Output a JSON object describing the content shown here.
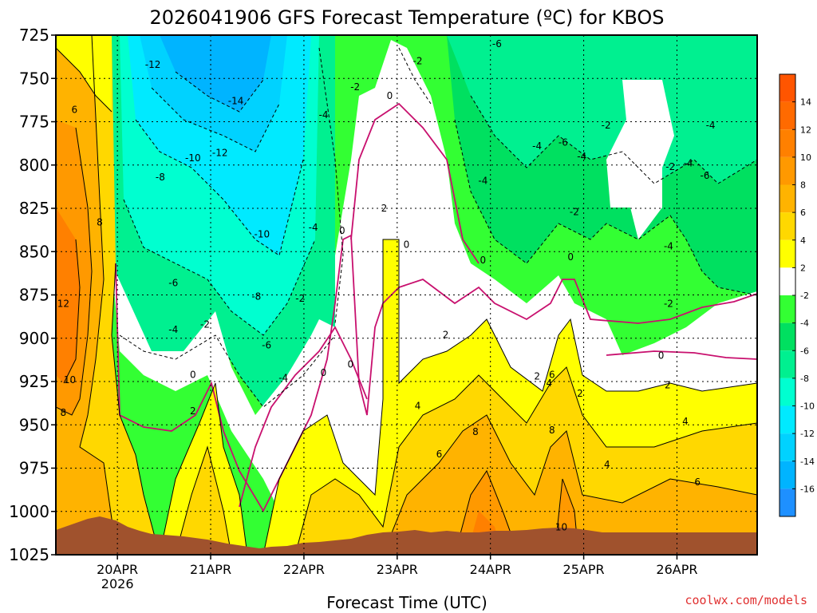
{
  "chart_data": {
    "type": "heatmap",
    "title": "2026041906 GFS Forecast Temperature (ºC) for KBOS",
    "xlabel": "Forecast Time (UTC)",
    "ylabel": "",
    "y_ticks": [
      725,
      750,
      775,
      800,
      825,
      850,
      875,
      900,
      925,
      950,
      975,
      1000,
      1025
    ],
    "ylim": [
      1025,
      725
    ],
    "x_ticks": [
      "20APR",
      "21APR",
      "22APR",
      "23APR",
      "24APR",
      "25APR",
      "26APR"
    ],
    "x_tick_sub": [
      "2026",
      "",
      "",
      "",
      "",
      "",
      ""
    ],
    "xlim_days": [
      -0.66,
      6.86
    ],
    "grid": true,
    "colorbar": {
      "levels": [
        -16,
        -14,
        -12,
        -10,
        -8,
        -6,
        -4,
        -2,
        2,
        4,
        6,
        8,
        10,
        12,
        14
      ],
      "labels": [
        "-16",
        "-14",
        "-12",
        "-10",
        "-8",
        "-6",
        "-4",
        "-2",
        "2",
        "4",
        "6",
        "8",
        "10",
        "12",
        "14"
      ],
      "colors": [
        "#1e90ff",
        "#00b4ff",
        "#00d2ff",
        "#00eaff",
        "#00ffd0",
        "#00f090",
        "#00e060",
        "#33ff33",
        "#ffffff",
        "#ffff00",
        "#ffd800",
        "#ffb300",
        "#ff9900",
        "#ff8000",
        "#ff6a00",
        "#ff5500"
      ]
    },
    "contour_labels": [
      {
        "t": "6",
        "d": -0.46,
        "p": 768
      },
      {
        "t": "8",
        "d": -0.19,
        "p": 833
      },
      {
        "t": "12",
        "d": -0.58,
        "p": 880
      },
      {
        "t": "10",
        "d": -0.51,
        "p": 924
      },
      {
        "t": "8",
        "d": -0.58,
        "p": 943
      },
      {
        "t": "-12",
        "d": 0.38,
        "p": 742
      },
      {
        "t": "-14",
        "d": 1.27,
        "p": 763
      },
      {
        "t": "-12",
        "d": 1.1,
        "p": 793
      },
      {
        "t": "-10",
        "d": 0.81,
        "p": 796
      },
      {
        "t": "-8",
        "d": 0.46,
        "p": 807
      },
      {
        "t": "-10",
        "d": 1.55,
        "p": 840
      },
      {
        "t": "-6",
        "d": 0.6,
        "p": 868
      },
      {
        "t": "-8",
        "d": 1.49,
        "p": 876
      },
      {
        "t": "-4",
        "d": 0.6,
        "p": 895
      },
      {
        "t": "-2",
        "d": 0.94,
        "p": 892
      },
      {
        "t": "-6",
        "d": 1.6,
        "p": 904
      },
      {
        "t": "-4",
        "d": 1.78,
        "p": 923
      },
      {
        "t": "0",
        "d": 0.81,
        "p": 921
      },
      {
        "t": "2",
        "d": 0.81,
        "p": 942
      },
      {
        "t": "-4",
        "d": 2.1,
        "p": 836
      },
      {
        "t": "-4",
        "d": 2.21,
        "p": 771
      },
      {
        "t": "-2",
        "d": 2.55,
        "p": 755
      },
      {
        "t": "0",
        "d": 2.41,
        "p": 838
      },
      {
        "t": "-2",
        "d": 1.96,
        "p": 877
      },
      {
        "t": "0",
        "d": 2.21,
        "p": 920
      },
      {
        "t": "0",
        "d": 2.5,
        "p": 915
      },
      {
        "t": "-2",
        "d": 3.22,
        "p": 740
      },
      {
        "t": "0",
        "d": 2.92,
        "p": 760
      },
      {
        "t": "2",
        "d": 2.86,
        "p": 825
      },
      {
        "t": "0",
        "d": 3.1,
        "p": 846
      },
      {
        "t": "-6",
        "d": 4.07,
        "p": 730
      },
      {
        "t": "-4",
        "d": 3.92,
        "p": 809
      },
      {
        "t": "0",
        "d": 3.92,
        "p": 855
      },
      {
        "t": "2",
        "d": 3.52,
        "p": 898
      },
      {
        "t": "4",
        "d": 3.22,
        "p": 939
      },
      {
        "t": "6",
        "d": 3.45,
        "p": 967
      },
      {
        "t": "8",
        "d": 3.84,
        "p": 954
      },
      {
        "t": "-4",
        "d": 4.5,
        "p": 789
      },
      {
        "t": "-6",
        "d": 4.78,
        "p": 787
      },
      {
        "t": "-4",
        "d": 4.98,
        "p": 795
      },
      {
        "t": "-2",
        "d": 5.24,
        "p": 777
      },
      {
        "t": "-2",
        "d": 4.9,
        "p": 827
      },
      {
        "t": "0",
        "d": 4.86,
        "p": 853
      },
      {
        "t": "2",
        "d": 4.5,
        "p": 922
      },
      {
        "t": "6",
        "d": 4.66,
        "p": 921
      },
      {
        "t": "4",
        "d": 4.63,
        "p": 926
      },
      {
        "t": "8",
        "d": 4.66,
        "p": 953
      },
      {
        "t": "2",
        "d": 4.96,
        "p": 932
      },
      {
        "t": "4",
        "d": 5.25,
        "p": 973
      },
      {
        "t": "10",
        "d": 4.76,
        "p": 1009
      },
      {
        "t": "-2",
        "d": 5.93,
        "p": 801
      },
      {
        "t": "-4",
        "d": 6.12,
        "p": 799
      },
      {
        "t": "-6",
        "d": 6.3,
        "p": 806
      },
      {
        "t": "-4",
        "d": 6.36,
        "p": 777
      },
      {
        "t": "-4",
        "d": 5.91,
        "p": 847
      },
      {
        "t": "-2",
        "d": 5.91,
        "p": 880
      },
      {
        "t": "0",
        "d": 5.83,
        "p": 910
      },
      {
        "t": "2",
        "d": 5.9,
        "p": 927
      },
      {
        "t": "4",
        "d": 6.09,
        "p": 948
      },
      {
        "t": "6",
        "d": 6.22,
        "p": 983
      }
    ]
  },
  "credit": "coolwx.com/models"
}
